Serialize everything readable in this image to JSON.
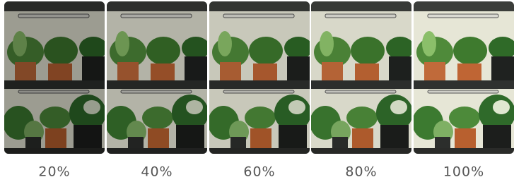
{
  "panels": [
    {
      "label": "20%"
    },
    {
      "label": "40%"
    },
    {
      "label": "60%"
    },
    {
      "label": "80%"
    },
    {
      "label": "100%"
    }
  ]
}
